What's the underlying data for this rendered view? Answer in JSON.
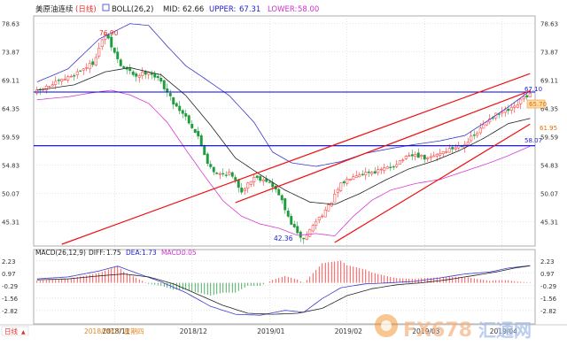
{
  "header": {
    "title": "美原油连续",
    "period": "(日线)",
    "boll_label": "BOLL(26,2)",
    "mid_label": "MID:",
    "mid_value": "62.66",
    "upper_label": "UPPER:",
    "upper_value": "67.31",
    "lower_label": "LOWER:",
    "lower_value": "58.00"
  },
  "macd_header": {
    "label": "MACD(26,12,9)",
    "diff_label": "DIFF:",
    "diff_value": "1.75",
    "dea_label": "DEA:",
    "dea_value": "1.73",
    "macd_label": "MACD:",
    "macd_value": "0.05"
  },
  "footer": {
    "period_label": "日线",
    "cursor_date": "2018/09/27",
    "cursor_weekday": "星期四",
    "x_labels": [
      "2018/11",
      "2018/12",
      "2019/01",
      "2019/02",
      "2019/03",
      "2019/04"
    ]
  },
  "annotations": {
    "high_label": "76.90",
    "low_label": "42.36",
    "line_6710": "67.10",
    "line_5807": "58.07",
    "price_tag": "65.70",
    "price_tag2": "61.95"
  },
  "watermark": {
    "brand": "FX678",
    "brand_cn": "汇通网"
  },
  "colors": {
    "up": "#ff2a2a",
    "down": "#1e9c3c",
    "boll_mid": "#222222",
    "boll_upper": "#3a3acc",
    "boll_lower": "#d63cd6",
    "horizontal": "#0000dd",
    "trend": "#ee1111",
    "diff": "#3a3acc",
    "dea": "#222222",
    "label_red": "#e03030",
    "label_blue": "#2222cc",
    "label_magenta": "#cc33cc",
    "axis_text": "#333333",
    "grid": "#c8c8c8"
  },
  "chart_data": [
    {
      "type": "candlestick",
      "title": "美原油连续(日线)",
      "y_ticks": [
        78.63,
        73.87,
        69.11,
        64.35,
        59.59,
        54.83,
        50.07,
        45.31
      ],
      "ylim": [
        41.5,
        79.6
      ],
      "x_labels": [
        "2018/11",
        "2018/12",
        "2019/01",
        "2019/02",
        "2019/03",
        "2019/04"
      ],
      "x_label_index": [
        25,
        50,
        75,
        100,
        125,
        150
      ],
      "candle_count": 160,
      "anchors": [
        [
          0,
          67.2
        ],
        [
          10,
          69.5
        ],
        [
          18,
          72.0
        ],
        [
          22,
          76.9
        ],
        [
          27,
          71.5
        ],
        [
          32,
          69.8
        ],
        [
          36,
          70.6
        ],
        [
          40,
          68.8
        ],
        [
          44,
          65.3
        ],
        [
          48,
          63.0
        ],
        [
          52,
          59.5
        ],
        [
          55,
          55.3
        ],
        [
          58,
          53.2
        ],
        [
          62,
          53.5
        ],
        [
          66,
          50.5
        ],
        [
          70,
          52.8
        ],
        [
          74,
          52.3
        ],
        [
          78,
          50.0
        ],
        [
          81,
          46.0
        ],
        [
          84,
          43.2
        ],
        [
          86,
          42.36
        ],
        [
          90,
          45.4
        ],
        [
          94,
          47.8
        ],
        [
          98,
          51.5
        ],
        [
          102,
          53.2
        ],
        [
          106,
          53.6
        ],
        [
          110,
          53.8
        ],
        [
          114,
          54.5
        ],
        [
          118,
          55.8
        ],
        [
          122,
          56.5
        ],
        [
          126,
          55.8
        ],
        [
          130,
          56.9
        ],
        [
          134,
          57.6
        ],
        [
          138,
          58.5
        ],
        [
          142,
          60.2
        ],
        [
          146,
          62.8
        ],
        [
          150,
          63.6
        ],
        [
          154,
          64.4
        ],
        [
          157,
          66.2
        ],
        [
          159,
          66.7
        ]
      ],
      "boll_mid_anchors": [
        [
          0,
          67.4
        ],
        [
          12,
          68.3
        ],
        [
          22,
          70.5
        ],
        [
          30,
          71.2
        ],
        [
          40,
          70.0
        ],
        [
          48,
          66.5
        ],
        [
          56,
          61.5
        ],
        [
          64,
          56.0
        ],
        [
          72,
          53.2
        ],
        [
          80,
          50.6
        ],
        [
          88,
          48.6
        ],
        [
          96,
          48.2
        ],
        [
          104,
          50.0
        ],
        [
          112,
          52.2
        ],
        [
          120,
          54.2
        ],
        [
          128,
          55.5
        ],
        [
          136,
          57.2
        ],
        [
          144,
          59.3
        ],
        [
          152,
          61.8
        ],
        [
          159,
          62.66
        ]
      ],
      "boll_upper_anchors": [
        [
          0,
          68.8
        ],
        [
          10,
          71.0
        ],
        [
          20,
          76.0
        ],
        [
          30,
          78.6
        ],
        [
          36,
          78.3
        ],
        [
          42,
          74.8
        ],
        [
          48,
          71.5
        ],
        [
          54,
          69.4
        ],
        [
          62,
          66.5
        ],
        [
          70,
          62.0
        ],
        [
          76,
          57.0
        ],
        [
          82,
          55.2
        ],
        [
          90,
          54.6
        ],
        [
          98,
          55.4
        ],
        [
          106,
          56.8
        ],
        [
          114,
          57.6
        ],
        [
          122,
          58.3
        ],
        [
          130,
          58.9
        ],
        [
          138,
          59.8
        ],
        [
          146,
          62.5
        ],
        [
          152,
          64.6
        ],
        [
          159,
          67.31
        ]
      ],
      "boll_lower_anchors": [
        [
          0,
          65.8
        ],
        [
          10,
          66.3
        ],
        [
          18,
          67.0
        ],
        [
          24,
          67.4
        ],
        [
          30,
          66.6
        ],
        [
          36,
          65.2
        ],
        [
          42,
          62.0
        ],
        [
          48,
          57.4
        ],
        [
          54,
          53.0
        ],
        [
          60,
          48.8
        ],
        [
          66,
          46.2
        ],
        [
          72,
          44.9
        ],
        [
          78,
          44.2
        ],
        [
          84,
          43.0
        ],
        [
          90,
          43.3
        ],
        [
          96,
          42.9
        ],
        [
          102,
          46.2
        ],
        [
          108,
          48.9
        ],
        [
          114,
          50.6
        ],
        [
          122,
          51.7
        ],
        [
          130,
          52.4
        ],
        [
          138,
          53.8
        ],
        [
          146,
          55.2
        ],
        [
          152,
          56.4
        ],
        [
          159,
          58.0
        ]
      ],
      "horizontal_lines": [
        67.1,
        58.07
      ],
      "trend_lines": [
        [
          [
            8,
            41.5
          ],
          [
            159,
            70.2
          ]
        ],
        [
          [
            64,
            48.5
          ],
          [
            159,
            67.3
          ]
        ],
        [
          [
            96,
            41.8
          ],
          [
            159,
            61.7
          ]
        ]
      ]
    },
    {
      "type": "macd",
      "title": "MACD(26,12,9)",
      "y_ticks": [
        2.23,
        0.97,
        -0.29,
        -1.56,
        -2.82
      ],
      "ylim": [
        -4.0,
        3.2
      ],
      "diff_anchors": [
        [
          0,
          0.4
        ],
        [
          10,
          0.6
        ],
        [
          20,
          1.2
        ],
        [
          26,
          1.7
        ],
        [
          32,
          1.0
        ],
        [
          40,
          0.1
        ],
        [
          48,
          -1.0
        ],
        [
          56,
          -2.4
        ],
        [
          64,
          -3.2
        ],
        [
          72,
          -3.3
        ],
        [
          80,
          -2.8
        ],
        [
          86,
          -3.0
        ],
        [
          92,
          -1.6
        ],
        [
          98,
          -0.5
        ],
        [
          106,
          -0.1
        ],
        [
          114,
          0.0
        ],
        [
          122,
          0.15
        ],
        [
          130,
          0.5
        ],
        [
          138,
          0.9
        ],
        [
          146,
          1.1
        ],
        [
          152,
          1.5
        ],
        [
          159,
          1.75
        ]
      ],
      "dea_anchors": [
        [
          0,
          0.3
        ],
        [
          10,
          0.4
        ],
        [
          20,
          0.7
        ],
        [
          28,
          0.9
        ],
        [
          36,
          0.6
        ],
        [
          44,
          -0.1
        ],
        [
          52,
          -1.2
        ],
        [
          60,
          -2.3
        ],
        [
          68,
          -3.1
        ],
        [
          76,
          -3.2
        ],
        [
          84,
          -3.1
        ],
        [
          92,
          -2.6
        ],
        [
          100,
          -1.3
        ],
        [
          108,
          -0.6
        ],
        [
          116,
          -0.2
        ],
        [
          124,
          0.0
        ],
        [
          132,
          0.3
        ],
        [
          140,
          0.7
        ],
        [
          148,
          1.1
        ],
        [
          154,
          1.5
        ],
        [
          159,
          1.73
        ]
      ]
    }
  ]
}
